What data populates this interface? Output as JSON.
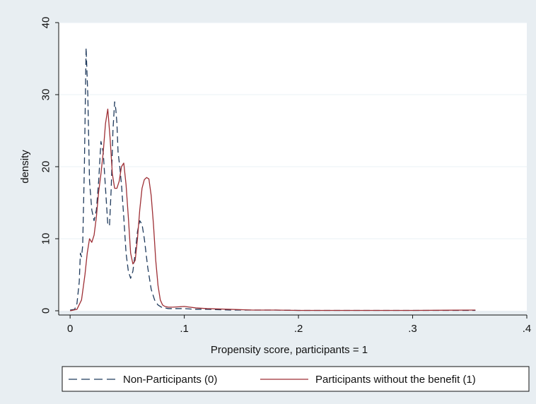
{
  "chart_data": {
    "type": "line",
    "title": "",
    "xlabel": "Propensity score, participants = 1",
    "ylabel": "density",
    "xlim": [
      -0.01,
      0.4
    ],
    "ylim": [
      0,
      40
    ],
    "xticks": [
      0,
      0.1,
      0.2,
      0.3,
      0.4
    ],
    "xtick_labels": [
      "0",
      ".1",
      ".2",
      ".3",
      ".4"
    ],
    "yticks": [
      0,
      10,
      20,
      30,
      40
    ],
    "ytick_labels": [
      "0",
      "10",
      "20",
      "30",
      "40"
    ],
    "grid": true,
    "legend_position": "bottom",
    "colors": {
      "background": "#e8eef2",
      "plot_background": "#ffffff",
      "grid": "#eaf0f4",
      "non_participants": "#1f3a5c",
      "participants": "#9e2f35"
    },
    "series": [
      {
        "name": "Non-Participants (0)",
        "line_style": "dashed",
        "x": [
          0.0,
          0.004,
          0.006,
          0.008,
          0.009,
          0.01,
          0.011,
          0.0125,
          0.014,
          0.0155,
          0.017,
          0.019,
          0.021,
          0.023,
          0.025,
          0.027,
          0.029,
          0.031,
          0.033,
          0.0345,
          0.036,
          0.0375,
          0.039,
          0.04,
          0.041,
          0.042,
          0.0435,
          0.045,
          0.047,
          0.049,
          0.051,
          0.053,
          0.055,
          0.057,
          0.059,
          0.061,
          0.063,
          0.065,
          0.068,
          0.071,
          0.074,
          0.077,
          0.08,
          0.083,
          0.086,
          0.09,
          0.1,
          0.11,
          0.12,
          0.14,
          0.16,
          0.18,
          0.2,
          0.25,
          0.3,
          0.355
        ],
        "y": [
          0.1,
          0.2,
          1.0,
          4.0,
          8.0,
          7.5,
          9.0,
          20.0,
          36.5,
          30.0,
          18.0,
          14.0,
          12.5,
          14.0,
          18.0,
          23.5,
          22.0,
          17.0,
          12.0,
          11.8,
          17.0,
          25.0,
          29.0,
          28.0,
          26.0,
          22.0,
          20.0,
          17.5,
          13.0,
          8.0,
          5.5,
          4.5,
          5.5,
          8.0,
          11.0,
          12.5,
          12.0,
          10.0,
          6.0,
          3.0,
          1.5,
          0.8,
          0.5,
          0.4,
          0.3,
          0.3,
          0.3,
          0.2,
          0.2,
          0.1,
          0.1,
          0.1,
          0.05,
          0.05,
          0.05,
          0.05
        ]
      },
      {
        "name": "Participants without the benefit (1)",
        "line_style": "solid",
        "x": [
          0.0,
          0.006,
          0.01,
          0.013,
          0.015,
          0.017,
          0.019,
          0.021,
          0.023,
          0.025,
          0.027,
          0.029,
          0.031,
          0.033,
          0.035,
          0.037,
          0.039,
          0.041,
          0.043,
          0.045,
          0.047,
          0.049,
          0.051,
          0.053,
          0.055,
          0.057,
          0.059,
          0.061,
          0.063,
          0.065,
          0.067,
          0.069,
          0.071,
          0.073,
          0.075,
          0.077,
          0.079,
          0.081,
          0.083,
          0.086,
          0.09,
          0.1,
          0.11,
          0.12,
          0.14,
          0.16,
          0.18,
          0.2,
          0.25,
          0.3,
          0.355
        ],
        "y": [
          0.0,
          0.2,
          1.5,
          5.0,
          8.0,
          10.0,
          9.5,
          10.5,
          13.0,
          16.5,
          19.0,
          22.0,
          26.0,
          28.0,
          24.0,
          19.0,
          17.0,
          17.0,
          18.0,
          20.0,
          20.5,
          17.5,
          13.0,
          8.0,
          6.5,
          7.0,
          10.0,
          14.0,
          17.0,
          18.2,
          18.5,
          18.3,
          16.0,
          12.0,
          7.0,
          3.5,
          1.5,
          0.8,
          0.6,
          0.5,
          0.5,
          0.6,
          0.4,
          0.3,
          0.2,
          0.1,
          0.1,
          0.05,
          0.05,
          0.05,
          0.1
        ]
      }
    ]
  }
}
